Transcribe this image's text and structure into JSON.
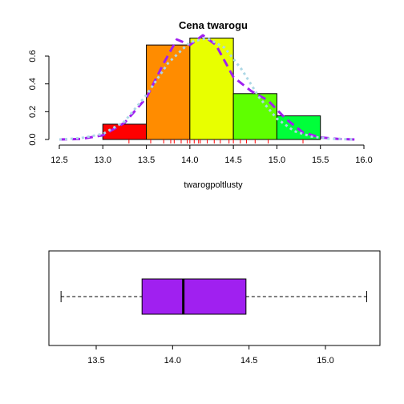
{
  "chart_data": [
    {
      "type": "histogram",
      "title": "Cena twarogu",
      "xlabel": "twarogpoltlusty",
      "ylabel": "",
      "xlim": [
        12.5,
        16.0
      ],
      "ylim": [
        0,
        0.7
      ],
      "x_ticks": [
        "12.5",
        "13.0",
        "13.5",
        "14.0",
        "14.5",
        "15.0",
        "15.5",
        "16.0"
      ],
      "y_ticks": [
        "0.0",
        "0.2",
        "0.4",
        "0.6"
      ],
      "bins": [
        {
          "start": 13.0,
          "end": 13.5,
          "density": 0.11,
          "color": "#ff0000"
        },
        {
          "start": 13.5,
          "end": 14.0,
          "density": 0.68,
          "color": "#ff8c00"
        },
        {
          "start": 14.0,
          "end": 14.5,
          "density": 0.73,
          "color": "#e8ff00"
        },
        {
          "start": 14.5,
          "end": 15.0,
          "density": 0.33,
          "color": "#5fff00"
        },
        {
          "start": 15.0,
          "end": 15.5,
          "density": 0.17,
          "color": "#00ff3a"
        }
      ],
      "density_curves": [
        {
          "style": "dashed",
          "color": "#a020f0",
          "x": [
            12.5,
            12.75,
            13.0,
            13.25,
            13.5,
            13.7,
            13.85,
            14.0,
            14.15,
            14.3,
            14.5,
            14.7,
            14.9,
            15.1,
            15.3,
            15.5,
            15.7,
            15.9
          ],
          "y": [
            0.0,
            0.004,
            0.03,
            0.12,
            0.3,
            0.55,
            0.72,
            0.68,
            0.75,
            0.68,
            0.45,
            0.35,
            0.28,
            0.15,
            0.05,
            0.015,
            0.004,
            0.0
          ]
        },
        {
          "style": "dotted",
          "color": "#add8e6",
          "x": [
            12.5,
            12.75,
            13.0,
            13.25,
            13.5,
            13.75,
            14.0,
            14.2,
            14.4,
            14.6,
            14.8,
            15.0,
            15.2,
            15.4,
            15.6,
            15.9
          ],
          "y": [
            0.0,
            0.01,
            0.04,
            0.13,
            0.32,
            0.55,
            0.7,
            0.73,
            0.66,
            0.5,
            0.3,
            0.15,
            0.06,
            0.02,
            0.005,
            0.0
          ]
        }
      ],
      "rug": {
        "color": "#ff0000",
        "values": [
          13.3,
          13.55,
          13.7,
          13.78,
          13.82,
          13.9,
          13.97,
          14.0,
          14.05,
          14.1,
          14.12,
          14.2,
          14.28,
          14.35,
          14.45,
          14.5,
          14.58,
          14.65,
          14.75,
          14.9,
          15.3
        ]
      }
    },
    {
      "type": "boxplot",
      "orientation": "horizontal",
      "color": "#a020f0",
      "xlim": [
        13.2,
        15.32
      ],
      "x_ticks": [
        "13.5",
        "14.0",
        "14.5",
        "15.0"
      ],
      "min": 13.27,
      "q1": 13.8,
      "median": 14.07,
      "q3": 14.48,
      "max": 15.27
    }
  ]
}
